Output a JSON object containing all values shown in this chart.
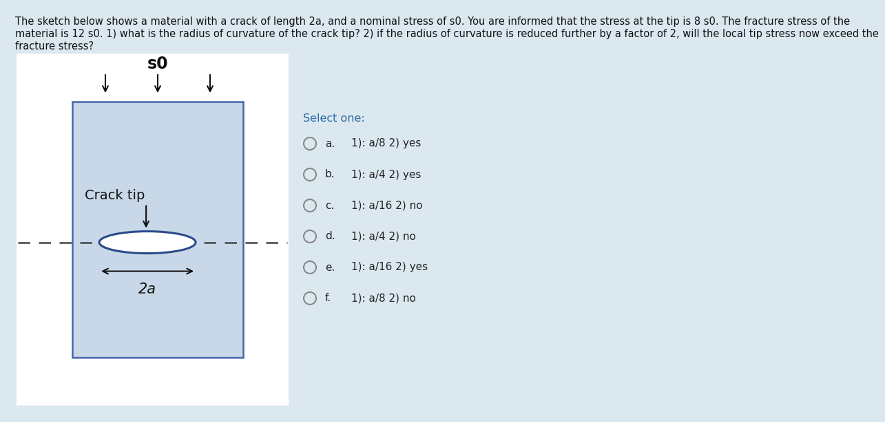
{
  "background_color": "#dce8f0",
  "title_lines": [
    "The sketch below shows a material with a crack of length 2a, and a nominal stress of s0. You are informed that the stress at the tip is 8 s0. The fracture stress of the",
    "material is 12 s0. 1) what is the radius of curvature of the crack tip? 2) if the radius of curvature is reduced further by a factor of 2, will the local tip stress now exceed the",
    "fracture stress?"
  ],
  "title_fontsize": 10.5,
  "title_color": "#111111",
  "select_one_text": "Select one:",
  "select_one_color": "#2e6da4",
  "select_one_fontsize": 11.5,
  "options": [
    {
      "label": "a.",
      "text": "1): a/8 2) yes"
    },
    {
      "label": "b.",
      "text": "1): a/4 2) yes"
    },
    {
      "label": "c.",
      "text": "1): a/16 2) no"
    },
    {
      "label": "d.",
      "text": "1): a/4 2) no"
    },
    {
      "label": "e.",
      "text": "1): a/16 2) yes"
    },
    {
      "label": "f.",
      "text": "1): a/8 2) no"
    }
  ],
  "option_fontsize": 11,
  "option_color": "#222222",
  "card_bg": "#ffffff",
  "diagram_bg": "#c8d8e8",
  "diagram_border": "#4466aa",
  "s0_label": "s0",
  "crack_tip_label": "Crack tip",
  "two_a_label": "2a",
  "arrow_color": "#111111",
  "dashed_line_color": "#444444",
  "ellipse_color": "#2a4a8a",
  "circle_edge": "#888888"
}
